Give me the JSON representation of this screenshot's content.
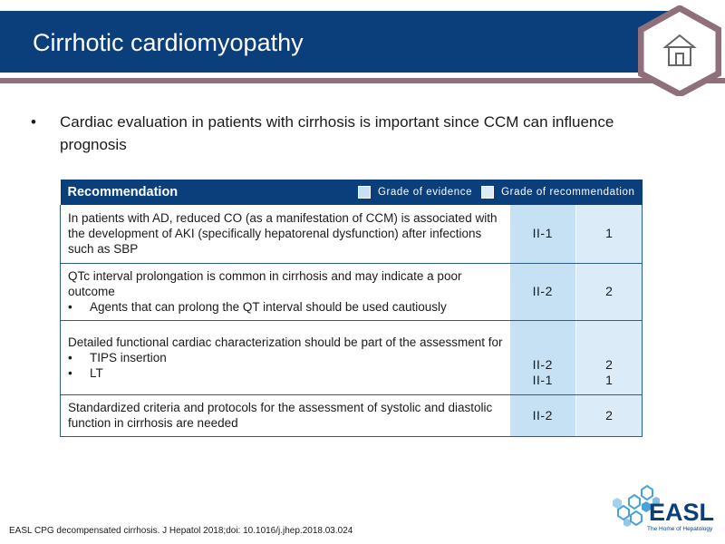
{
  "header": {
    "title": "Cirrhotic cardiomyopathy"
  },
  "colors": {
    "header_bg": "#0b3f7c",
    "stripe": "#8e6f7a",
    "evidence_bg": "#c6e0f4",
    "recommendation_bg": "#dbecf8"
  },
  "icons": {
    "home": "home-icon",
    "logo": "easl-logo"
  },
  "bullet": {
    "marker": "•",
    "text": "Cardiac evaluation in patients with cirrhosis is important since CCM can influence prognosis"
  },
  "table": {
    "header_label": "Recommendation",
    "legend_evidence": "Grade of evidence",
    "legend_recommendation": "Grade of recommendation",
    "rows": [
      {
        "text": "In patients with AD, reduced CO (as a manifestation of CCM) is associated with the development of AKI (specifically hepatorenal dysfunction) after infections such as SBP",
        "evidence": "II-1",
        "recommendation": "1"
      },
      {
        "text": "QTc interval prolongation is common in cirrhosis and may indicate a poor outcome",
        "sub_items": [
          {
            "marker": "•",
            "text": "Agents that can prolong the QT interval should be used cautiously"
          }
        ],
        "evidence": "II-2",
        "recommendation": "2"
      },
      {
        "text": "Detailed functional cardiac characterization should be part of the assessment for",
        "sub_items": [
          {
            "marker": "•",
            "text": "TIPS insertion"
          },
          {
            "marker": "•",
            "text": "LT"
          }
        ],
        "evidence": [
          "II-2",
          "II-1"
        ],
        "recommendation": [
          "2",
          "1"
        ]
      },
      {
        "text": "Standardized criteria and protocols for the assessment of systolic and diastolic function in cirrhosis are needed",
        "evidence": "II-2",
        "recommendation": "2"
      }
    ]
  },
  "footer": {
    "citation": "EASL CPG decompensated cirrhosis. J Hepatol 2018;doi: 10.1016/j.jhep.2018.03.024"
  },
  "logo": {
    "name": "EASL",
    "tagline": "The Home of Hepatology"
  }
}
